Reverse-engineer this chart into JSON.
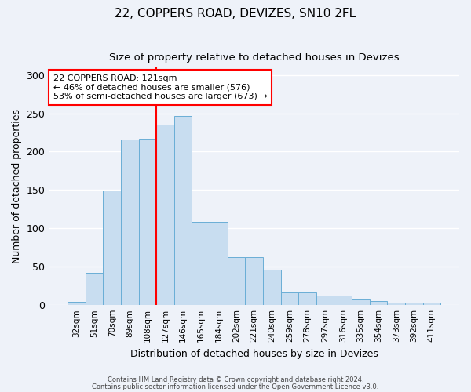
{
  "title1": "22, COPPERS ROAD, DEVIZES, SN10 2FL",
  "title2": "Size of property relative to detached houses in Devizes",
  "xlabel": "Distribution of detached houses by size in Devizes",
  "ylabel": "Number of detached properties",
  "footer1": "Contains HM Land Registry data © Crown copyright and database right 2024.",
  "footer2": "Contains public sector information licensed under the Open Government Licence v3.0.",
  "annotation_line1": "22 COPPERS ROAD: 121sqm",
  "annotation_line2": "← 46% of detached houses are smaller (576)",
  "annotation_line3": "53% of semi-detached houses are larger (673) →",
  "bar_values": [
    4,
    42,
    149,
    216,
    217,
    235,
    246,
    109,
    109,
    63,
    63,
    46,
    17,
    17,
    12,
    12,
    7,
    5,
    3,
    3,
    3
  ],
  "bar_labels": [
    "32sqm",
    "51sqm",
    "70sqm",
    "89sqm",
    "108sqm",
    "127sqm",
    "146sqm",
    "165sqm",
    "184sqm",
    "202sqm",
    "221sqm",
    "240sqm",
    "259sqm",
    "278sqm",
    "297sqm",
    "316sqm",
    "335sqm",
    "354sqm",
    "373sqm",
    "392sqm",
    "411sqm"
  ],
  "bar_color": "#c8ddf0",
  "bar_edgecolor": "#6aaed6",
  "vline_x": 4.5,
  "vline_color": "red",
  "ylim": [
    0,
    310
  ],
  "yticks": [
    0,
    50,
    100,
    150,
    200,
    250,
    300
  ],
  "background_color": "#eef2f9",
  "grid_color": "#ffffff"
}
